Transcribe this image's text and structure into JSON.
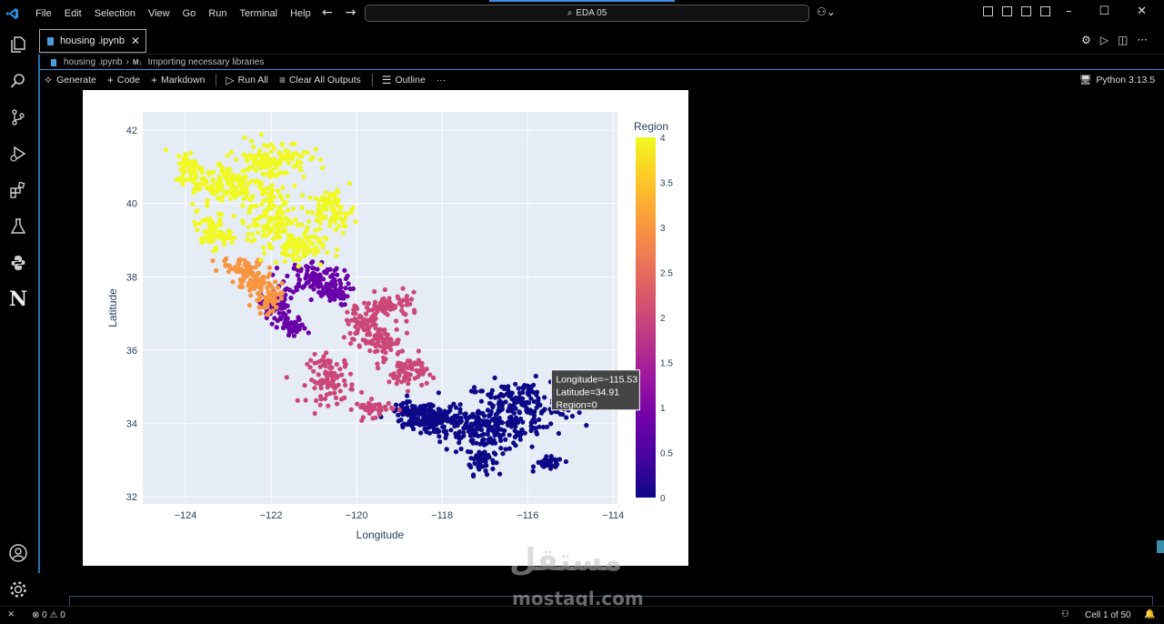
{
  "titlebar": {
    "menu": [
      "File",
      "Edit",
      "Selection",
      "View",
      "Go",
      "Run",
      "Terminal",
      "Help"
    ],
    "search_text": "EDA 05"
  },
  "tab": {
    "label": "housing .ipynb"
  },
  "breadcrumb": {
    "file": "housing .ipynb",
    "md_badge": "M↓",
    "section": "Importing necessary libraries"
  },
  "toolbar": {
    "generate": "Generate",
    "code": "Code",
    "markdown": "Markdown",
    "run_all": "Run All",
    "clear_outputs": "Clear All Outputs",
    "outline": "Outline",
    "more": "···",
    "kernel": "Python 3.13.5"
  },
  "chart_data": {
    "type": "scatter",
    "title": "",
    "xlabel": "Longitude",
    "ylabel": "Latitude",
    "xlim": [
      -125,
      -113.9
    ],
    "ylim": [
      31.8,
      42.5
    ],
    "xticks": [
      "−124",
      "−122",
      "−120",
      "−118",
      "−116",
      "−114"
    ],
    "yticks": [
      "32",
      "34",
      "36",
      "38",
      "40",
      "42"
    ],
    "colorbar": {
      "title": "Region",
      "range": [
        0,
        4
      ],
      "ticks": [
        "0",
        "0.5",
        "1",
        "1.5",
        "2",
        "2.5",
        "3",
        "3.5",
        "4"
      ],
      "colorscale": "plasma"
    },
    "regions": [
      {
        "region": 0,
        "color": "#0d0887",
        "clusters": [
          [
            -117.9,
            34.0,
            0.9,
            0.35
          ],
          [
            -118.3,
            34.2,
            0.6,
            0.3
          ],
          [
            -117.1,
            33.0,
            0.3,
            0.35
          ],
          [
            -116.8,
            33.8,
            1.0,
            0.5
          ],
          [
            -118.7,
            34.3,
            0.5,
            0.25
          ],
          [
            -115.5,
            32.9,
            0.3,
            0.15
          ],
          [
            -116.2,
            34.5,
            1.2,
            0.6
          ]
        ]
      },
      {
        "region": 1,
        "color": "#6a00a8",
        "clusters": [
          [
            -121.0,
            38.0,
            0.6,
            0.4
          ],
          [
            -120.6,
            37.6,
            0.4,
            0.35
          ],
          [
            -121.9,
            37.2,
            0.3,
            0.4
          ],
          [
            -121.5,
            36.6,
            0.3,
            0.25
          ]
        ]
      },
      {
        "region": 2,
        "color": "#cc4778",
        "clusters": [
          [
            -119.8,
            36.7,
            0.4,
            0.5
          ],
          [
            -119.4,
            36.2,
            0.4,
            0.4
          ],
          [
            -120.6,
            35.2,
            0.5,
            0.6
          ],
          [
            -119.6,
            34.4,
            0.4,
            0.2
          ],
          [
            -118.8,
            35.4,
            0.4,
            0.4
          ],
          [
            -119.2,
            37.2,
            0.6,
            0.3
          ]
        ]
      },
      {
        "region": 3,
        "color": "#f89540",
        "clusters": [
          [
            -122.4,
            37.9,
            0.4,
            0.35
          ],
          [
            -122.1,
            37.4,
            0.3,
            0.35
          ],
          [
            -122.7,
            38.3,
            0.4,
            0.2
          ]
        ]
      },
      {
        "region": 4,
        "color": "#f0f921",
        "clusters": [
          [
            -121.4,
            38.8,
            0.6,
            0.4
          ],
          [
            -122.0,
            39.6,
            0.5,
            0.8
          ],
          [
            -123.0,
            40.5,
            0.8,
            0.6
          ],
          [
            -123.9,
            41.0,
            0.3,
            0.4
          ],
          [
            -122.0,
            41.2,
            0.8,
            0.5
          ],
          [
            -120.6,
            39.8,
            0.5,
            0.5
          ],
          [
            -123.4,
            39.2,
            0.4,
            0.4
          ]
        ]
      }
    ],
    "hover": {
      "lines": [
        "Longitude=−115.53",
        "Latitude=34.91",
        "Region=0"
      ],
      "x": -115.53,
      "y": 34.91
    }
  },
  "watermark": {
    "arabic": "مستقل",
    "latin": "mostaql.com"
  },
  "statusbar": {
    "problems": "⊗ 0 ⚠ 0",
    "cell": "Cell 1 of 50"
  }
}
